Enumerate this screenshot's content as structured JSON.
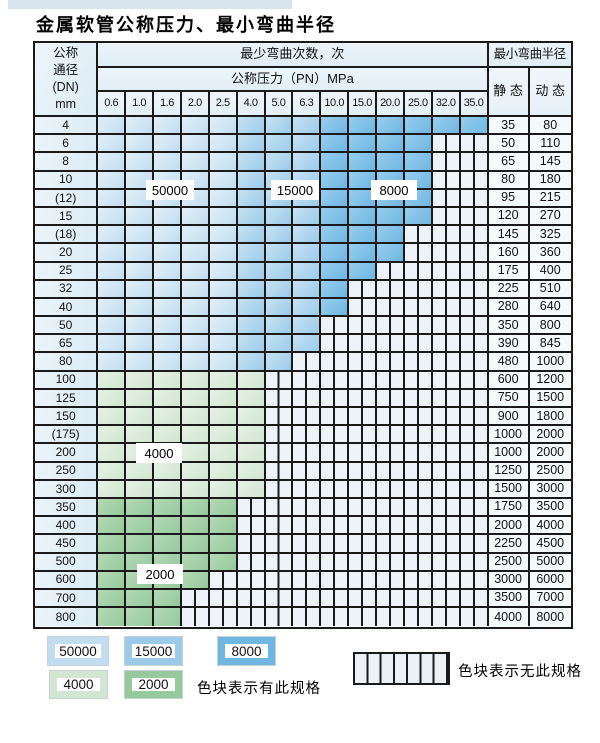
{
  "page": {
    "title": "金属软管公称压力、最小弯曲半径"
  },
  "table": {
    "corner": {
      "line1": "公称",
      "line2": "通径",
      "line3": "(DN)",
      "line4": "mm"
    },
    "bend_header": "最少弯曲次数，次",
    "pressure_header": "公称压力（PN）MPa",
    "radius_header": "最小弯曲半径",
    "static_label": "静 态",
    "dynamic_label": "动 态",
    "pressures": [
      "0.6",
      "1.0",
      "1.6",
      "2.0",
      "2.5",
      "4.0",
      "5.0",
      "6.3",
      "10.0",
      "15.0",
      "20.0",
      "25.0",
      "32.0",
      "35.0"
    ],
    "rows": [
      {
        "dn": "4",
        "colored": 14,
        "zone": null,
        "s": "35",
        "d": "80"
      },
      {
        "dn": "6",
        "colored": 12,
        "zone": null,
        "s": "50",
        "d": "110"
      },
      {
        "dn": "8",
        "colored": 12,
        "zone": null,
        "s": "65",
        "d": "145"
      },
      {
        "dn": "10",
        "colored": 12,
        "zone": null,
        "s": "80",
        "d": "180"
      },
      {
        "dn": "(12)",
        "colored": 12,
        "zone": null,
        "s": "95",
        "d": "215"
      },
      {
        "dn": "15",
        "colored": 12,
        "zone": null,
        "s": "120",
        "d": "270"
      },
      {
        "dn": "(18)",
        "colored": 11,
        "zone": null,
        "s": "145",
        "d": "325"
      },
      {
        "dn": "20",
        "colored": 11,
        "zone": null,
        "s": "160",
        "d": "360"
      },
      {
        "dn": "25",
        "colored": 10,
        "zone": null,
        "s": "175",
        "d": "400"
      },
      {
        "dn": "32",
        "colored": 9,
        "zone": null,
        "s": "225",
        "d": "510"
      },
      {
        "dn": "40",
        "colored": 9,
        "zone": null,
        "s": "280",
        "d": "640"
      },
      {
        "dn": "50",
        "colored": 8,
        "zone": null,
        "s": "350",
        "d": "800"
      },
      {
        "dn": "65",
        "colored": 8,
        "zone": null,
        "s": "390",
        "d": "845"
      },
      {
        "dn": "80",
        "colored": 7,
        "zone": null,
        "s": "480",
        "d": "1000"
      },
      {
        "dn": "100",
        "colored": 6,
        "zone": "4000",
        "s": "600",
        "d": "1200"
      },
      {
        "dn": "125",
        "colored": 6,
        "zone": "4000",
        "s": "750",
        "d": "1500"
      },
      {
        "dn": "150",
        "colored": 6,
        "zone": "4000",
        "s": "900",
        "d": "1800"
      },
      {
        "dn": "(175)",
        "colored": 6,
        "zone": "4000",
        "s": "1000",
        "d": "2000"
      },
      {
        "dn": "200",
        "colored": 6,
        "zone": "4000",
        "s": "1000",
        "d": "2000"
      },
      {
        "dn": "250",
        "colored": 6,
        "zone": "4000",
        "s": "1250",
        "d": "2500"
      },
      {
        "dn": "300",
        "colored": 6,
        "zone": "4000",
        "s": "1500",
        "d": "3000"
      },
      {
        "dn": "350",
        "colored": 5,
        "zone": "2000",
        "s": "1750",
        "d": "3500"
      },
      {
        "dn": "400",
        "colored": 5,
        "zone": "2000",
        "s": "2000",
        "d": "4000"
      },
      {
        "dn": "450",
        "colored": 5,
        "zone": "2000",
        "s": "2250",
        "d": "4500"
      },
      {
        "dn": "500",
        "colored": 5,
        "zone": "2000",
        "s": "2500",
        "d": "5000"
      },
      {
        "dn": "600",
        "colored": 4,
        "zone": "2000",
        "s": "3000",
        "d": "6000"
      },
      {
        "dn": "700",
        "colored": 3,
        "zone": "2000",
        "s": "3500",
        "d": "7000"
      },
      {
        "dn": "800",
        "colored": 3,
        "zone": "2000",
        "s": "4000",
        "d": "8000"
      }
    ]
  },
  "zone_colors": {
    "50000": {
      "light": "#e2f0f9",
      "base": "#c2ddef"
    },
    "15000": {
      "light": "#c6e2f3",
      "base": "#9ccbe9"
    },
    "8000": {
      "light": "#97cdee",
      "base": "#6fb7e1"
    },
    "4000": {
      "light": "#e6f1e5",
      "base": "#d2e6d1"
    },
    "2000": {
      "light": "#b4d9b6",
      "base": "#96c99c"
    }
  },
  "zone_labels": {
    "b50000": "50000",
    "b15000": "15000",
    "b8000": "8000",
    "g4000": "4000",
    "g2000": "2000"
  },
  "legend": {
    "items": [
      {
        "label": "50000",
        "zone": "50000"
      },
      {
        "label": "15000",
        "zone": "15000"
      },
      {
        "label": "8000",
        "zone": "8000"
      },
      {
        "label": "4000",
        "zone": "4000"
      },
      {
        "label": "2000",
        "zone": "2000"
      }
    ],
    "has_spec_note": "色块表示有此规格",
    "no_spec_note": "色块表示无此规格"
  },
  "grid_line_color": "#1a1a1a",
  "stripe_cell_color": "#edf3f8"
}
